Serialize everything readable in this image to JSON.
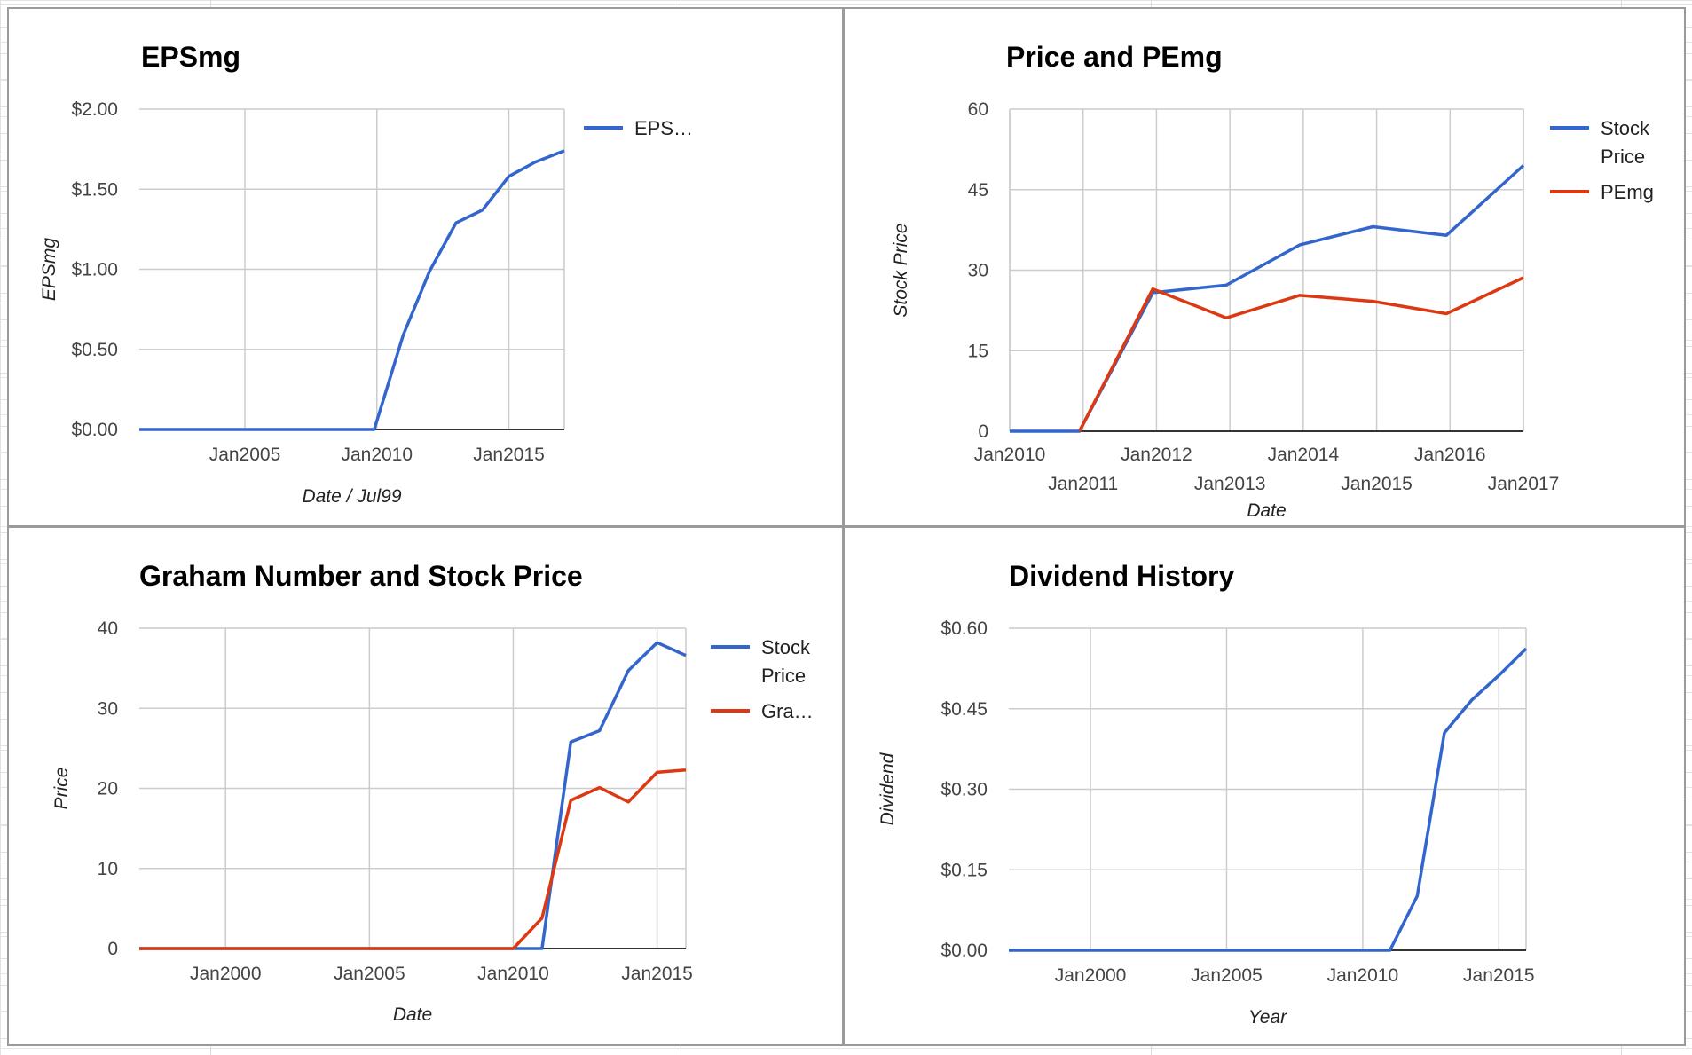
{
  "colors": {
    "blue": "#3366cc",
    "red": "#dc3912",
    "grid": "#cccccc",
    "axis": "#333333"
  },
  "chart_data": [
    {
      "id": "p1",
      "type": "line",
      "title": "EPSmg",
      "xlabel": "Date / Jul99",
      "ylabel": "EPSmg",
      "xlim": [
        2001.0,
        2017.1
      ],
      "ylim": [
        0,
        2
      ],
      "yticks": [
        0,
        0.5,
        1,
        1.5,
        2
      ],
      "ytick_labels": [
        "$0.00",
        "$0.50",
        "$1.00",
        "$1.50",
        "$2.00"
      ],
      "xticks": [
        2005,
        2010,
        2015
      ],
      "xtick_labels": [
        "Jan2005",
        "Jan2010",
        "Jan2015"
      ],
      "legend": "right",
      "series": [
        {
          "name": "EPS…",
          "color": "#3366cc",
          "x": [
            2001.0,
            2009.9,
            2011.0,
            2012.0,
            2013.0,
            2014.0,
            2015.0,
            2016.0,
            2017.1
          ],
          "y": [
            0,
            0,
            0.59,
            0.99,
            1.29,
            1.37,
            1.58,
            1.67,
            1.74
          ]
        }
      ]
    },
    {
      "id": "p2",
      "type": "line",
      "title": "Price and PEmg",
      "xlabel": "Date",
      "ylabel": "Stock Price",
      "xlim": [
        2010.0,
        2017.0
      ],
      "ylim": [
        0,
        60
      ],
      "yticks": [
        0,
        15,
        30,
        45,
        60
      ],
      "ytick_labels": [
        "0",
        "15",
        "30",
        "45",
        "60"
      ],
      "xticks": [
        2010,
        2011,
        2012,
        2013,
        2014,
        2015,
        2016,
        2017
      ],
      "xtick_labels": [
        "Jan2010",
        "Jan2011",
        "Jan2012",
        "Jan2013",
        "Jan2014",
        "Jan2015",
        "Jan2016",
        "Jan2017"
      ],
      "legend": "right",
      "series": [
        {
          "name": "Stock Price",
          "color": "#3366cc",
          "x": [
            2010.0,
            2010.95,
            2011.95,
            2012.95,
            2013.95,
            2014.95,
            2015.95,
            2017.0
          ],
          "y": [
            0,
            0,
            25.8,
            27.2,
            34.7,
            38.1,
            36.5,
            49.5
          ]
        },
        {
          "name": "PEmg",
          "color": "#dc3912",
          "x": [
            2010.95,
            2011.95,
            2012.95,
            2013.95,
            2014.95,
            2015.95,
            2017.0
          ],
          "y": [
            0,
            26.5,
            21.1,
            25.3,
            24.2,
            21.9,
            28.6
          ]
        }
      ]
    },
    {
      "id": "p3",
      "type": "line",
      "title": "Graham Number and Stock Price",
      "xlabel": "Date",
      "ylabel": "Price",
      "xlim": [
        1997.0,
        2016.0
      ],
      "ylim": [
        0,
        40
      ],
      "yticks": [
        0,
        10,
        20,
        30,
        40
      ],
      "ytick_labels": [
        "0",
        "10",
        "20",
        "30",
        "40"
      ],
      "xticks": [
        2000,
        2005,
        2010,
        2015
      ],
      "xtick_labels": [
        "Jan2000",
        "Jan2005",
        "Jan2010",
        "Jan2015"
      ],
      "legend": "right",
      "series": [
        {
          "name": "Stock Price",
          "color": "#3366cc",
          "x": [
            1997.0,
            2011.0,
            2012.0,
            2013.0,
            2014.0,
            2015.0,
            2016.0
          ],
          "y": [
            0,
            0,
            25.8,
            27.2,
            34.7,
            38.2,
            36.6
          ]
        },
        {
          "name": "Gra…",
          "color": "#dc3912",
          "x": [
            1997.0,
            2010.0,
            2011.0,
            2012.0,
            2013.0,
            2014.0,
            2015.0,
            2016.0
          ],
          "y": [
            0,
            0,
            3.8,
            18.5,
            20.1,
            18.3,
            22.0,
            22.3
          ]
        }
      ]
    },
    {
      "id": "p4",
      "type": "line",
      "title": "Dividend History",
      "xlabel": "Year",
      "ylabel": "Dividend",
      "xlim": [
        1997.0,
        2016.0
      ],
      "ylim": [
        0,
        0.6
      ],
      "yticks": [
        0,
        0.15,
        0.3,
        0.45,
        0.6
      ],
      "ytick_labels": [
        "$0.00",
        "$0.15",
        "$0.30",
        "$0.45",
        "$0.60"
      ],
      "xticks": [
        2000,
        2005,
        2010,
        2015
      ],
      "xtick_labels": [
        "Jan2000",
        "Jan2005",
        "Jan2010",
        "Jan2015"
      ],
      "legend": "none",
      "series": [
        {
          "name": "",
          "color": "#3366cc",
          "x": [
            1997.0,
            2011.0,
            2012.0,
            2013.0,
            2014.0,
            2015.0,
            2016.0
          ],
          "y": [
            0,
            0,
            0.101,
            0.405,
            0.466,
            0.512,
            0.562
          ]
        }
      ]
    }
  ]
}
